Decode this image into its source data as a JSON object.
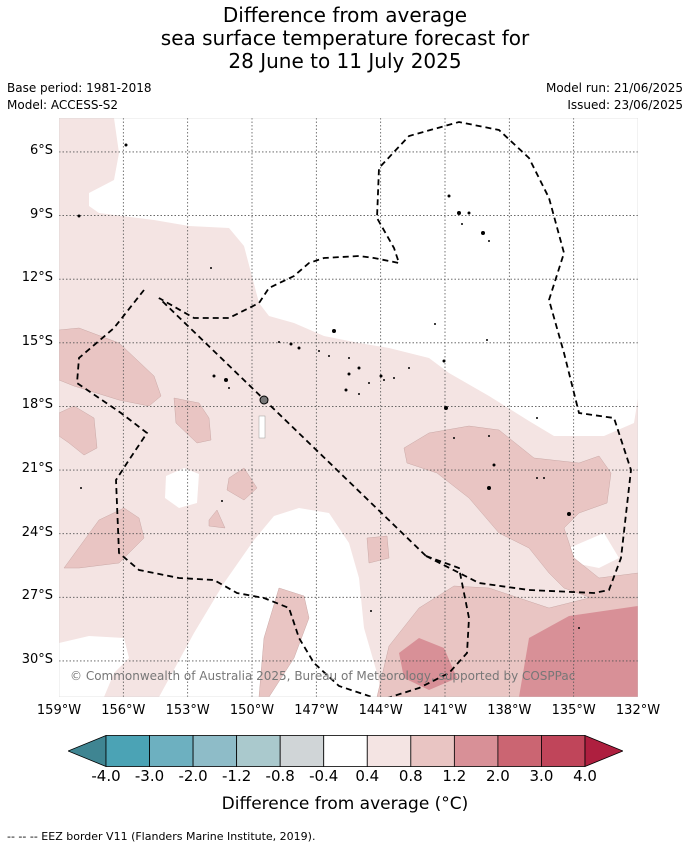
{
  "title_lines": [
    "Difference from average",
    "sea surface temperature forecast for",
    "28 June to 11 July 2025"
  ],
  "meta": {
    "base_period": "Base period: 1981-2018",
    "model": "Model: ACCESS-S2",
    "model_run": "Model run: 21/06/2025",
    "issued": "Issued: 23/06/2025"
  },
  "map": {
    "lon_range": [
      -159,
      -132
    ],
    "lat_range": [
      -4.4,
      -31.7
    ],
    "lat_ticks": [
      {
        "value": -6,
        "label": "6°S"
      },
      {
        "value": -9,
        "label": "9°S"
      },
      {
        "value": -12,
        "label": "12°S"
      },
      {
        "value": -15,
        "label": "15°S"
      },
      {
        "value": -18,
        "label": "18°S"
      },
      {
        "value": -21,
        "label": "21°S"
      },
      {
        "value": -24,
        "label": "24°S"
      },
      {
        "value": -27,
        "label": "27°S"
      },
      {
        "value": -30,
        "label": "30°S"
      }
    ],
    "lon_ticks": [
      {
        "value": -159,
        "label": "159°W"
      },
      {
        "value": -156,
        "label": "156°W"
      },
      {
        "value": -153,
        "label": "153°W"
      },
      {
        "value": -150,
        "label": "150°W"
      },
      {
        "value": -147,
        "label": "147°W"
      },
      {
        "value": -144,
        "label": "144°W"
      },
      {
        "value": -141,
        "label": "141°W"
      },
      {
        "value": -138,
        "label": "138°W"
      },
      {
        "value": -135,
        "label": "135°W"
      },
      {
        "value": -132,
        "label": "132°W"
      }
    ],
    "copyright": "© Commonwealth of Australia 2025, Bureau of Meteorology, supported by COSPPac"
  },
  "colorbar": {
    "colors": [
      "#3f8592",
      "#4ba3b5",
      "#6db0c0",
      "#8ebcc8",
      "#aac9cd",
      "#d0d5d7",
      "#ffffff",
      "#f4e4e3",
      "#e9c5c3",
      "#d89097",
      "#cb6572",
      "#c0455a",
      "#ae1f3f"
    ],
    "labels": [
      "-4.0",
      "-3.0",
      "-2.0",
      "-1.2",
      "-0.8",
      "-0.4",
      "0.4",
      "0.8",
      "1.2",
      "2.0",
      "3.0",
      "4.0"
    ],
    "title": "Difference from average (°C)"
  },
  "footer": "--  --  -- EEZ border V11 (Flanders Marine Institute, 2019)."
}
